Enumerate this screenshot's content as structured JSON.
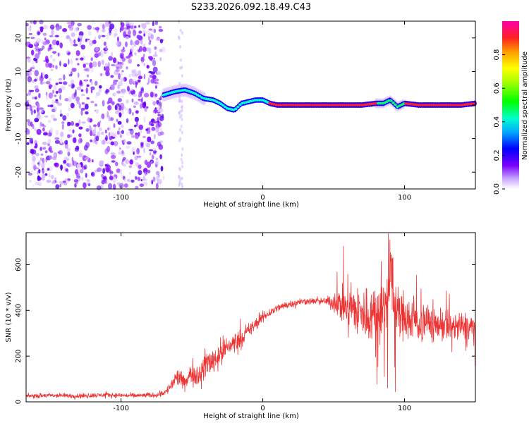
{
  "title": "S233.2026.092.18.49.C43",
  "chart_data": [
    {
      "type": "heatmap",
      "name": "spectrogram",
      "xlabel": "Height of straight line (km)",
      "ylabel": "Frequency (Hz)",
      "xlim": [
        -167,
        150
      ],
      "ylim": [
        -25,
        25
      ],
      "xticks": [
        -100,
        0,
        100
      ],
      "yticks": [
        -20,
        -10,
        0,
        10,
        20
      ],
      "colorbar": {
        "label": "Normalized spectral amplitude",
        "range": [
          0,
          1
        ],
        "ticks": [
          0.0,
          0.2,
          0.4,
          0.6,
          0.8
        ]
      },
      "noise_region_x": [
        -167,
        -70
      ],
      "signal_track": {
        "x": [
          -70,
          -62,
          -55,
          -48,
          -42,
          -35,
          -30,
          -25,
          -20,
          -15,
          -10,
          -5,
          0,
          5,
          10,
          20,
          40,
          60,
          70,
          80,
          85,
          90,
          95,
          100,
          110,
          120,
          130,
          140,
          150
        ],
        "freq": [
          3,
          4,
          4.5,
          3.5,
          2,
          1.5,
          0.5,
          -1,
          -1.5,
          0.5,
          1,
          1.5,
          1.5,
          0.5,
          0,
          0,
          0,
          0,
          0,
          0.5,
          0.5,
          1.5,
          -0.5,
          0.5,
          0,
          0,
          0,
          0,
          0.5
        ]
      }
    },
    {
      "type": "line",
      "name": "snr",
      "xlabel": "Height of straight line (km)",
      "ylabel": "SNR (10 * v/v)",
      "xlim": [
        -167,
        150
      ],
      "ylim": [
        0,
        740
      ],
      "xticks": [
        -100,
        0,
        100
      ],
      "yticks": [
        0,
        200,
        400,
        600
      ],
      "color": "#ee3333",
      "series": {
        "name": "SNR",
        "x": [
          -167,
          -150,
          -130,
          -110,
          -90,
          -75,
          -68,
          -65,
          -60,
          -55,
          -50,
          -45,
          -40,
          -35,
          -30,
          -25,
          -20,
          -15,
          -10,
          -5,
          0,
          5,
          10,
          15,
          20,
          25,
          30,
          35,
          40,
          45,
          50,
          55,
          60,
          65,
          70,
          75,
          80,
          85,
          88,
          90,
          92,
          95,
          100,
          105,
          110,
          115,
          120,
          125,
          130,
          135,
          140,
          145,
          150
        ],
        "y": [
          25,
          28,
          26,
          30,
          27,
          30,
          45,
          70,
          110,
          80,
          130,
          120,
          170,
          180,
          210,
          240,
          260,
          280,
          310,
          340,
          370,
          390,
          410,
          420,
          430,
          435,
          440,
          440,
          440,
          440,
          435,
          430,
          420,
          400,
          380,
          380,
          390,
          400,
          430,
          560,
          420,
          390,
          370,
          360,
          350,
          345,
          340,
          340,
          335,
          330,
          325,
          330,
          320
        ],
        "noise_amplitude": [
          15,
          15,
          15,
          15,
          15,
          15,
          25,
          35,
          60,
          40,
          80,
          70,
          90,
          90,
          90,
          80,
          70,
          60,
          50,
          40,
          35,
          30,
          25,
          25,
          25,
          20,
          20,
          20,
          20,
          25,
          60,
          120,
          150,
          170,
          180,
          180,
          180,
          190,
          200,
          170,
          200,
          190,
          170,
          150,
          140,
          130,
          120,
          110,
          110,
          100,
          100,
          100,
          100
        ]
      }
    }
  ]
}
